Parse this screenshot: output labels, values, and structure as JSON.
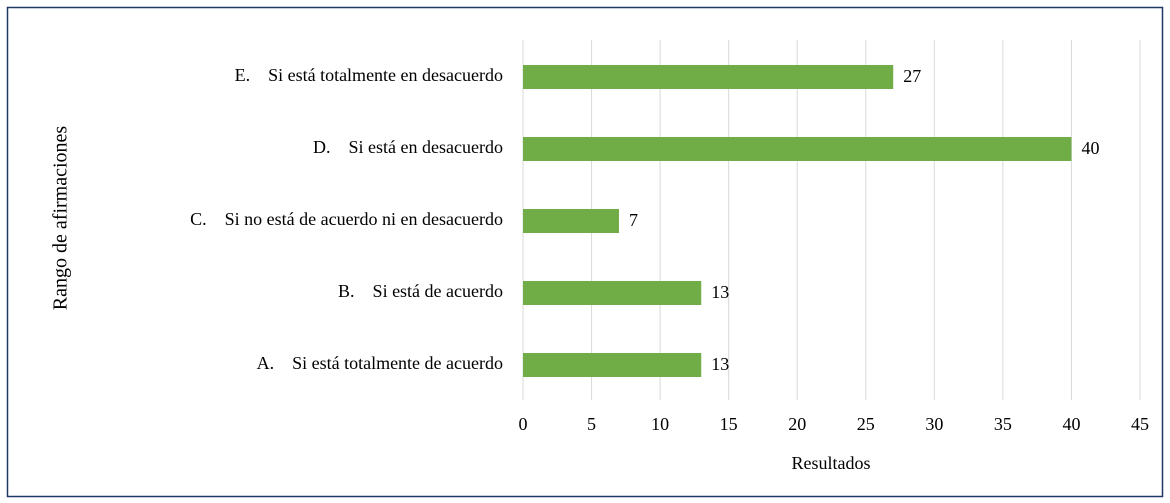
{
  "chart_data": {
    "type": "bar",
    "orientation": "horizontal",
    "x_label": "Resultados",
    "y_label": "Rango de afirmaciones",
    "categories": [
      "E.    Si está totalmente en desacuerdo",
      "D.    Si está en desacuerdo",
      "C.    Si no está de acuerdo ni en desacuerdo",
      "B.    Si está de acuerdo",
      "A.    Si está totalmente de acuerdo"
    ],
    "values": [
      27,
      40,
      7,
      13,
      13
    ],
    "color": "#70ad47",
    "xlim": [
      0,
      45
    ],
    "xticks": [
      0,
      5,
      10,
      15,
      20,
      25,
      30,
      35,
      40,
      45
    ],
    "grid": true
  }
}
